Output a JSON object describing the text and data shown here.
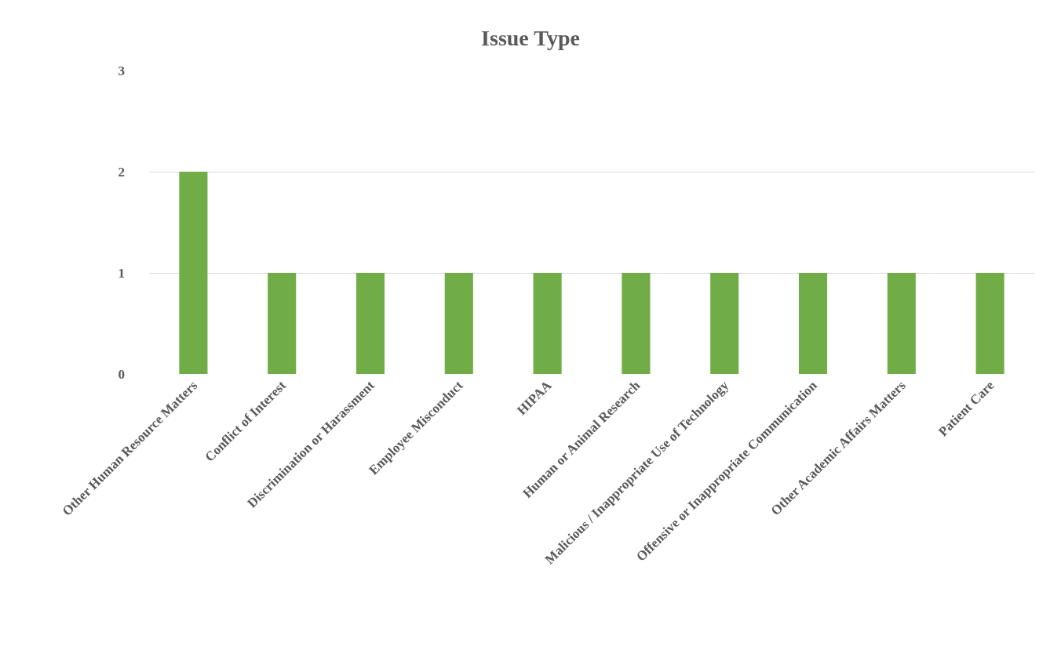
{
  "chart_data": {
    "type": "bar",
    "title": "Issue Type",
    "categories": [
      "Other Human Resource Matters",
      "Conflict of Interest",
      "Discrimination or Harassment",
      "Employee Misconduct",
      "HIPAA",
      "Human or Animal Research",
      "Malicious / Inappropriate Use of Technology",
      "Offensive or Inappropriate Communication",
      "Other Academic Affairs Matters",
      "Patient Care"
    ],
    "values": [
      2,
      1,
      1,
      1,
      1,
      1,
      1,
      1,
      1,
      1
    ],
    "color": "#70ad47",
    "ylim": [
      0,
      3
    ],
    "yticks": [
      0,
      1,
      2,
      3
    ],
    "grid": "y",
    "legend": false
  }
}
